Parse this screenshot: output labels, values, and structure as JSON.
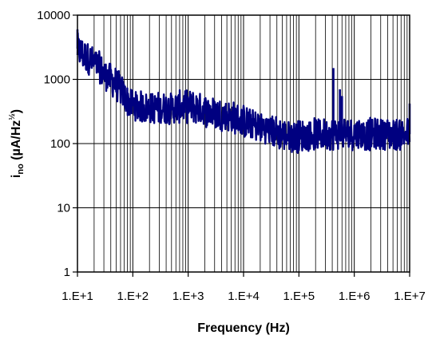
{
  "chart_data": {
    "type": "line",
    "title": "",
    "xlabel": "Frequency (Hz)",
    "ylabel_main": "i",
    "ylabel_sub": "no",
    "ylabel_rest": " (µA/Hz",
    "ylabel_sup": "½",
    "ylabel_end": ")",
    "xscale": "log",
    "yscale": "log",
    "xlim": [
      10,
      10000000
    ],
    "ylim": [
      1,
      10000
    ],
    "grid": "major and minor",
    "legend": "none",
    "series_color": "#000080",
    "x_ticks": [
      {
        "value": 10,
        "label": "1.E+1"
      },
      {
        "value": 100,
        "label": "1.E+2"
      },
      {
        "value": 1000,
        "label": "1.E+3"
      },
      {
        "value": 10000,
        "label": "1.E+4"
      },
      {
        "value": 100000,
        "label": "1.E+5"
      },
      {
        "value": 1000000,
        "label": "1.E+6"
      },
      {
        "value": 10000000,
        "label": "1.E+7"
      }
    ],
    "y_ticks": [
      {
        "value": 1,
        "label": "1"
      },
      {
        "value": 10,
        "label": "10"
      },
      {
        "value": 100,
        "label": "100"
      },
      {
        "value": 1000,
        "label": "1000"
      },
      {
        "value": 10000,
        "label": "10000"
      }
    ],
    "series": [
      {
        "x": [
          10,
          12,
          15,
          20,
          25,
          30,
          40,
          50,
          60,
          70,
          80,
          100,
          120,
          150,
          200,
          300,
          500,
          700,
          1000,
          1500,
          2000,
          3000,
          5000,
          7000,
          10000,
          15000,
          20000,
          30000,
          50000,
          70000,
          100000,
          150000,
          200000,
          300000,
          400000,
          500000,
          700000,
          1000000,
          1500000,
          2000000,
          3000000,
          5000000,
          7000000,
          10000000
        ],
        "y": [
          3000,
          2500,
          2200,
          1800,
          1500,
          1200,
          1000,
          850,
          700,
          550,
          450,
          400,
          380,
          370,
          360,
          350,
          360,
          370,
          380,
          360,
          330,
          300,
          270,
          250,
          220,
          200,
          180,
          160,
          140,
          130,
          130,
          135,
          140,
          140,
          140,
          145,
          145,
          145,
          140,
          140,
          140,
          140,
          140,
          140
        ],
        "spikes": [
          {
            "x": 10,
            "y": 6000
          },
          {
            "x": 420000,
            "y": 1500
          },
          {
            "x": 550000,
            "y": 700
          },
          {
            "x": 600000,
            "y": 550
          },
          {
            "x": 10000000,
            "y": 420
          }
        ]
      }
    ]
  }
}
